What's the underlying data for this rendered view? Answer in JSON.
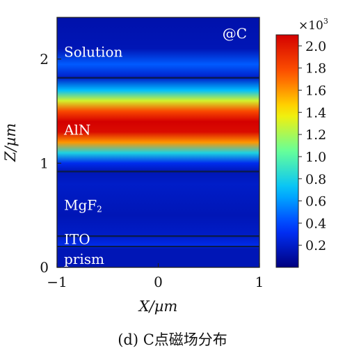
{
  "caption": "(d) C点磁场分布",
  "chart_data": {
    "type": "heatmap",
    "title": "",
    "xlabel": "X/µm",
    "ylabel": "Z/µm",
    "xlim": [
      -1,
      1
    ],
    "ylim": [
      0,
      2.4
    ],
    "x_ticks": [
      -1,
      0,
      1
    ],
    "y_ticks": [
      0,
      1,
      2
    ],
    "annotation": "@C",
    "layers": [
      {
        "name": "prism",
        "z_min": 0.0,
        "z_max": 0.2,
        "label_z": 0.08
      },
      {
        "name": "ITO",
        "z_min": 0.2,
        "z_max": 0.3,
        "label_z": 0.27
      },
      {
        "name": "MgF",
        "sub": "2",
        "z_min": 0.3,
        "z_max": 0.92,
        "label_z": 0.6
      },
      {
        "name": "AlN",
        "z_min": 0.92,
        "z_max": 1.82,
        "label_z": 1.32
      },
      {
        "name": "Solution",
        "z_min": 1.82,
        "z_max": 2.4,
        "label_z": 2.07
      }
    ],
    "boundaries_z": [
      0.2,
      0.3,
      0.92,
      1.82
    ],
    "field_profile": {
      "z": [
        0,
        0.18,
        0.2,
        0.3,
        0.5,
        0.8,
        0.92,
        1.0,
        1.1,
        1.2,
        1.3,
        1.4,
        1.5,
        1.6,
        1.7,
        1.82,
        1.95,
        2.1,
        2.4
      ],
      "value": [
        0.15,
        0.15,
        0.3,
        0.2,
        0.15,
        0.2,
        0.15,
        0.3,
        0.8,
        1.6,
        2.05,
        2.1,
        1.8,
        1.3,
        0.7,
        0.2,
        0.45,
        0.15,
        0.12
      ]
    },
    "colorbar": {
      "multiplier": "×10",
      "exponent": "3",
      "min": 0.0,
      "max": 2.1,
      "ticks": [
        0.2,
        0.4,
        0.6,
        0.8,
        1.0,
        1.2,
        1.4,
        1.6,
        1.8,
        2.0
      ],
      "tick_labels": [
        "0.2",
        "0.4",
        "0.6",
        "0.8",
        "1.0",
        "1.2",
        "1.4",
        "1.6",
        "1.8",
        "2.0"
      ]
    },
    "colormap": [
      "#00007f",
      "#0033ff",
      "#00bfff",
      "#66ff99",
      "#ffee00",
      "#ff5500",
      "#d40000"
    ]
  }
}
